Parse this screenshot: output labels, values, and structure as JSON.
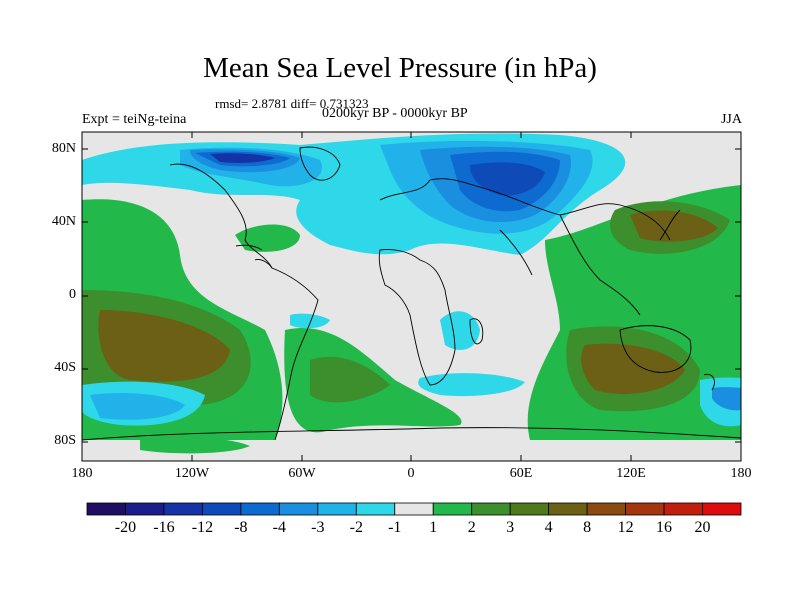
{
  "title": "Mean Sea Level Pressure (in hPa)",
  "stats_line": "rmsd= 2.8781 diff= 0.731323",
  "period_line": "0200kyr BP - 0000kyr BP",
  "experiment_label": "Expt = teiNg-teina",
  "season_label": "JJA",
  "axes": {
    "y_ticks": [
      "80N",
      "40N",
      "0",
      "40S",
      "80S"
    ],
    "x_ticks": [
      "180",
      "120W",
      "60W",
      "0",
      "60E",
      "120E",
      "180"
    ]
  },
  "colorbar": {
    "labels": [
      "-20",
      "-16",
      "-12",
      "-8",
      "-4",
      "-3",
      "-2",
      "-1",
      "1",
      "2",
      "3",
      "4",
      "8",
      "12",
      "16",
      "20"
    ],
    "colors": [
      "#1f0e63",
      "#1b1d8c",
      "#1532a6",
      "#0f4bb8",
      "#0d6ad0",
      "#1a8fe0",
      "#22b2ea",
      "#2ed8e8",
      "#e6e6e6",
      "#22b84a",
      "#3c8f2c",
      "#4f7a1c",
      "#6b6016",
      "#8a4a12",
      "#a4350f",
      "#c01f0e",
      "#de0c0c"
    ]
  },
  "map_colors": {
    "neutral": "#e6e6e6",
    "neg1": "#2ed8e8",
    "neg2": "#22b2ea",
    "neg3": "#1a8fe0",
    "neg4": "#0d6ad0",
    "neg5": "#0f4bb8",
    "neg6": "#1532a6",
    "pos1": "#22b84a",
    "pos2": "#3c8f2c",
    "pos3": "#6b6016"
  }
}
